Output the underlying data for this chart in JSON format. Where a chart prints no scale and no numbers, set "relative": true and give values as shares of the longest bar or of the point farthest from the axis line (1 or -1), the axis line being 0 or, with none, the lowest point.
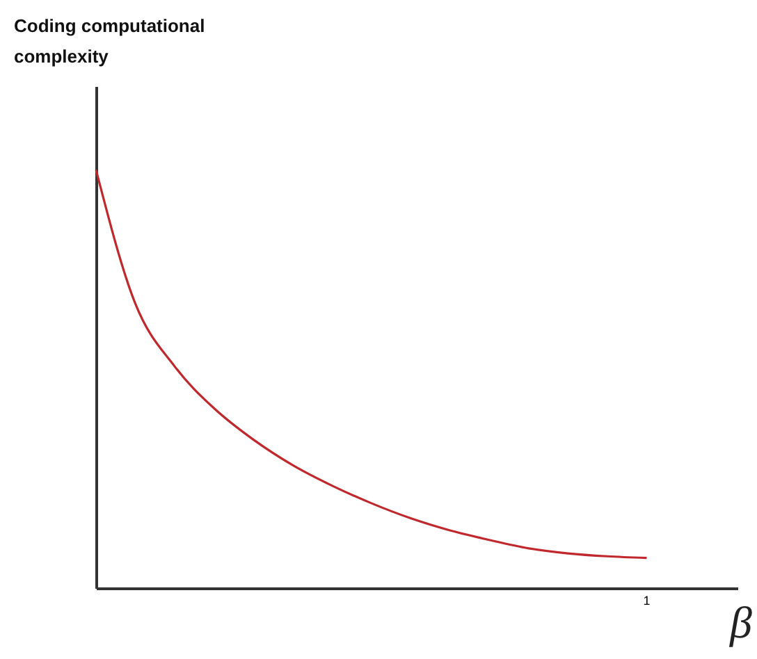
{
  "chart_data": {
    "type": "line",
    "relative": true,
    "title": "Coding computational complexity",
    "xlabel": "β",
    "grid": false,
    "marker": "none",
    "line_style": "solid",
    "annotations": [
      "1"
    ],
    "categories": [
      null,
      null,
      null,
      null,
      null,
      null,
      null,
      null,
      null,
      null,
      null,
      null,
      null,
      null,
      null
    ],
    "series": [
      {
        "color": "#c0282d",
        "values": [
          1,
          0.68,
          0.53,
          0.43,
          0.355,
          0.294,
          0.245,
          0.203,
          0.167,
          0.138,
          0.115,
          0.095,
          0.083,
          0.076,
          0.072
        ]
      }
    ]
  }
}
